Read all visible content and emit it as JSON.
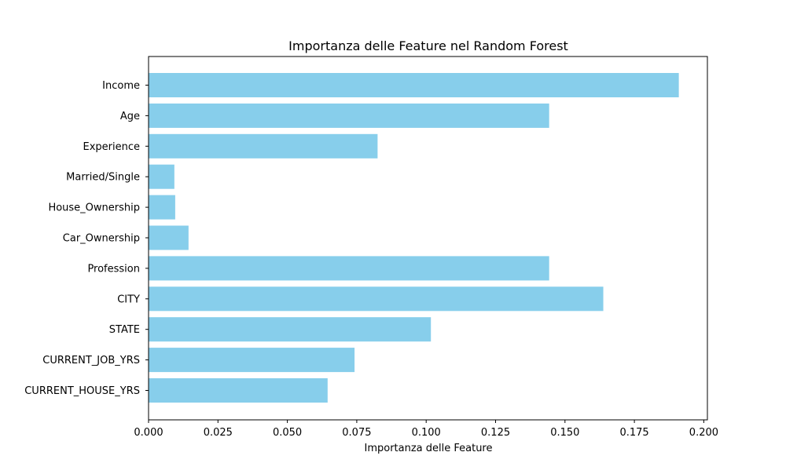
{
  "chart_data": {
    "type": "bar",
    "orientation": "horizontal",
    "title": "Importanza delle Feature nel Random Forest",
    "xlabel": "Importanza delle Feature",
    "ylabel": "",
    "categories": [
      "Income",
      "Age",
      "Experience",
      "Married/Single",
      "House_Ownership",
      "Car_Ownership",
      "Profession",
      "CITY",
      "STATE",
      "CURRENT_JOB_YRS",
      "CURRENT_HOUSE_YRS"
    ],
    "values": [
      0.191,
      0.1443,
      0.0825,
      0.0093,
      0.0096,
      0.0144,
      0.1443,
      0.1638,
      0.1017,
      0.0742,
      0.0645
    ],
    "xlim": [
      0,
      0.2013
    ],
    "xticks": [
      0.0,
      0.025,
      0.05,
      0.075,
      0.1,
      0.125,
      0.15,
      0.175,
      0.2
    ],
    "xtick_labels": [
      "0.000",
      "0.025",
      "0.050",
      "0.075",
      "0.100",
      "0.125",
      "0.150",
      "0.175",
      "0.200"
    ],
    "bar_color": "#87ceeb",
    "grid": false,
    "legend": "none"
  }
}
